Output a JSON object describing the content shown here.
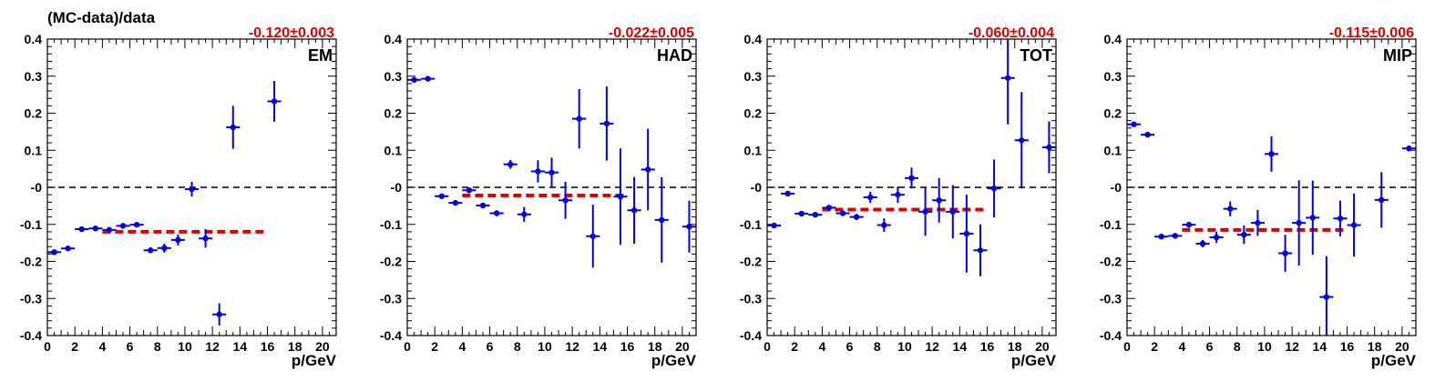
{
  "ylabel": "(MC-data)/data",
  "xlabel": "p/GeV",
  "colors": {
    "points": "#0000e0",
    "fit": "#e00000",
    "zero_line": "#000000",
    "frame": "#000000"
  },
  "chart_data": [
    {
      "type": "scatter",
      "label": "EM",
      "fit_text": "-0.120±0.003",
      "fit_value": -0.12,
      "fit_range": [
        4,
        16
      ],
      "xlim": [
        0,
        21
      ],
      "ylim": [
        -0.4,
        0.4
      ],
      "x_ticks": [
        0,
        2,
        4,
        6,
        8,
        10,
        12,
        14,
        16,
        18,
        20
      ],
      "y_ticks": [
        "0.4",
        "0.3",
        "0.2",
        "0.1",
        "-0",
        "-0.1",
        "-0.2",
        "-0.3",
        "-0.4"
      ],
      "grid": false,
      "points": [
        {
          "x": 0.5,
          "y": -0.175,
          "err": 0.006
        },
        {
          "x": 1.5,
          "y": -0.165,
          "err": 0.005
        },
        {
          "x": 2.5,
          "y": -0.113,
          "err": 0.004
        },
        {
          "x": 3.5,
          "y": -0.111,
          "err": 0.004
        },
        {
          "x": 4.5,
          "y": -0.115,
          "err": 0.004
        },
        {
          "x": 5.5,
          "y": -0.104,
          "err": 0.005
        },
        {
          "x": 6.5,
          "y": -0.101,
          "err": 0.006
        },
        {
          "x": 7.5,
          "y": -0.17,
          "err": 0.008
        },
        {
          "x": 8.5,
          "y": -0.164,
          "err": 0.012
        },
        {
          "x": 9.5,
          "y": -0.142,
          "err": 0.015
        },
        {
          "x": 10.5,
          "y": -0.005,
          "err": 0.02
        },
        {
          "x": 11.5,
          "y": -0.138,
          "err": 0.025
        },
        {
          "x": 12.5,
          "y": -0.343,
          "err": 0.03
        },
        {
          "x": 13.5,
          "y": 0.162,
          "err": 0.058
        },
        {
          "x": 16.5,
          "y": 0.232,
          "err": 0.055
        }
      ]
    },
    {
      "type": "scatter",
      "label": "HAD",
      "fit_text": "-0.022±0.005",
      "fit_value": -0.022,
      "fit_range": [
        4,
        16
      ],
      "xlim": [
        0,
        21
      ],
      "ylim": [
        -0.4,
        0.4
      ],
      "x_ticks": [
        0,
        2,
        4,
        6,
        8,
        10,
        12,
        14,
        16,
        18,
        20
      ],
      "y_ticks": [
        "0.4",
        "0.3",
        "0.2",
        "0.1",
        "-0",
        "-0.1",
        "-0.2",
        "-0.3",
        "-0.4"
      ],
      "grid": false,
      "points": [
        {
          "x": 0.5,
          "y": 0.29,
          "err": 0.004
        },
        {
          "x": 1.5,
          "y": 0.293,
          "err": 0.004
        },
        {
          "x": 2.5,
          "y": -0.024,
          "err": 0.004
        },
        {
          "x": 3.5,
          "y": -0.042,
          "err": 0.005
        },
        {
          "x": 4.5,
          "y": -0.008,
          "err": 0.006
        },
        {
          "x": 5.5,
          "y": -0.049,
          "err": 0.006
        },
        {
          "x": 6.5,
          "y": -0.07,
          "err": 0.008
        },
        {
          "x": 7.5,
          "y": 0.062,
          "err": 0.012
        },
        {
          "x": 8.5,
          "y": -0.073,
          "err": 0.02
        },
        {
          "x": 9.5,
          "y": 0.043,
          "err": 0.03
        },
        {
          "x": 10.5,
          "y": 0.04,
          "err": 0.04
        },
        {
          "x": 11.5,
          "y": -0.035,
          "err": 0.05
        },
        {
          "x": 12.5,
          "y": 0.185,
          "err": 0.08
        },
        {
          "x": 13.5,
          "y": -0.132,
          "err": 0.085
        },
        {
          "x": 14.5,
          "y": 0.172,
          "err": 0.1
        },
        {
          "x": 15.5,
          "y": -0.025,
          "err": 0.13
        },
        {
          "x": 16.5,
          "y": -0.062,
          "err": 0.09
        },
        {
          "x": 17.5,
          "y": 0.048,
          "err": 0.11
        },
        {
          "x": 18.5,
          "y": -0.088,
          "err": 0.115
        },
        {
          "x": 20.5,
          "y": -0.106,
          "err": 0.07
        }
      ]
    },
    {
      "type": "scatter",
      "label": "TOT",
      "fit_text": "-0.060±0.004",
      "fit_value": -0.06,
      "fit_range": [
        4,
        16
      ],
      "xlim": [
        0,
        21
      ],
      "ylim": [
        -0.4,
        0.4
      ],
      "x_ticks": [
        0,
        2,
        4,
        6,
        8,
        10,
        12,
        14,
        16,
        18,
        20
      ],
      "y_ticks": [
        "0.4",
        "0.3",
        "0.2",
        "0.1",
        "-0",
        "-0.1",
        "-0.2",
        "-0.3",
        "-0.4"
      ],
      "grid": false,
      "points": [
        {
          "x": 0.5,
          "y": -0.103,
          "err": 0.005
        },
        {
          "x": 1.5,
          "y": -0.017,
          "err": 0.004
        },
        {
          "x": 2.5,
          "y": -0.071,
          "err": 0.004
        },
        {
          "x": 3.5,
          "y": -0.074,
          "err": 0.004
        },
        {
          "x": 4.5,
          "y": -0.055,
          "err": 0.005
        },
        {
          "x": 5.5,
          "y": -0.07,
          "err": 0.006
        },
        {
          "x": 6.5,
          "y": -0.08,
          "err": 0.008
        },
        {
          "x": 7.5,
          "y": -0.027,
          "err": 0.015
        },
        {
          "x": 8.5,
          "y": -0.102,
          "err": 0.018
        },
        {
          "x": 9.5,
          "y": -0.02,
          "err": 0.022
        },
        {
          "x": 10.5,
          "y": 0.025,
          "err": 0.028
        },
        {
          "x": 11.5,
          "y": -0.066,
          "err": 0.065
        },
        {
          "x": 12.5,
          "y": -0.035,
          "err": 0.06
        },
        {
          "x": 13.5,
          "y": -0.066,
          "err": 0.072
        },
        {
          "x": 14.5,
          "y": -0.125,
          "err": 0.105
        },
        {
          "x": 15.5,
          "y": -0.17,
          "err": 0.07
        },
        {
          "x": 16.5,
          "y": -0.003,
          "err": 0.078
        },
        {
          "x": 17.5,
          "y": 0.295,
          "err": 0.125
        },
        {
          "x": 18.5,
          "y": 0.127,
          "err": 0.13
        },
        {
          "x": 20.5,
          "y": 0.108,
          "err": 0.07
        }
      ]
    },
    {
      "type": "scatter",
      "label": "MIP",
      "fit_text": "-0.115±0.006",
      "fit_value": -0.115,
      "fit_range": [
        4,
        16
      ],
      "xlim": [
        0,
        21
      ],
      "ylim": [
        -0.4,
        0.4
      ],
      "x_ticks": [
        0,
        2,
        4,
        6,
        8,
        10,
        12,
        14,
        16,
        18,
        20
      ],
      "y_ticks": [
        "0.4",
        "0.3",
        "0.2",
        "0.1",
        "-0",
        "-0.1",
        "-0.2",
        "-0.3",
        "-0.4"
      ],
      "grid": false,
      "points": [
        {
          "x": 0.5,
          "y": 0.17,
          "err": 0.005
        },
        {
          "x": 1.5,
          "y": 0.142,
          "err": 0.005
        },
        {
          "x": 2.5,
          "y": -0.133,
          "err": 0.005
        },
        {
          "x": 3.5,
          "y": -0.131,
          "err": 0.005
        },
        {
          "x": 4.5,
          "y": -0.101,
          "err": 0.008
        },
        {
          "x": 5.5,
          "y": -0.152,
          "err": 0.01
        },
        {
          "x": 6.5,
          "y": -0.135,
          "err": 0.015
        },
        {
          "x": 7.5,
          "y": -0.058,
          "err": 0.02
        },
        {
          "x": 8.5,
          "y": -0.128,
          "err": 0.025
        },
        {
          "x": 9.5,
          "y": -0.096,
          "err": 0.035
        },
        {
          "x": 10.5,
          "y": 0.09,
          "err": 0.048
        },
        {
          "x": 11.5,
          "y": -0.178,
          "err": 0.05
        },
        {
          "x": 12.5,
          "y": -0.096,
          "err": 0.115
        },
        {
          "x": 13.5,
          "y": -0.082,
          "err": 0.1
        },
        {
          "x": 14.5,
          "y": -0.296,
          "err": 0.11
        },
        {
          "x": 15.5,
          "y": -0.084,
          "err": 0.048
        },
        {
          "x": 16.5,
          "y": -0.102,
          "err": 0.085
        },
        {
          "x": 18.5,
          "y": -0.034,
          "err": 0.075
        },
        {
          "x": 20.5,
          "y": 0.105,
          "err": 0.008
        }
      ]
    }
  ]
}
